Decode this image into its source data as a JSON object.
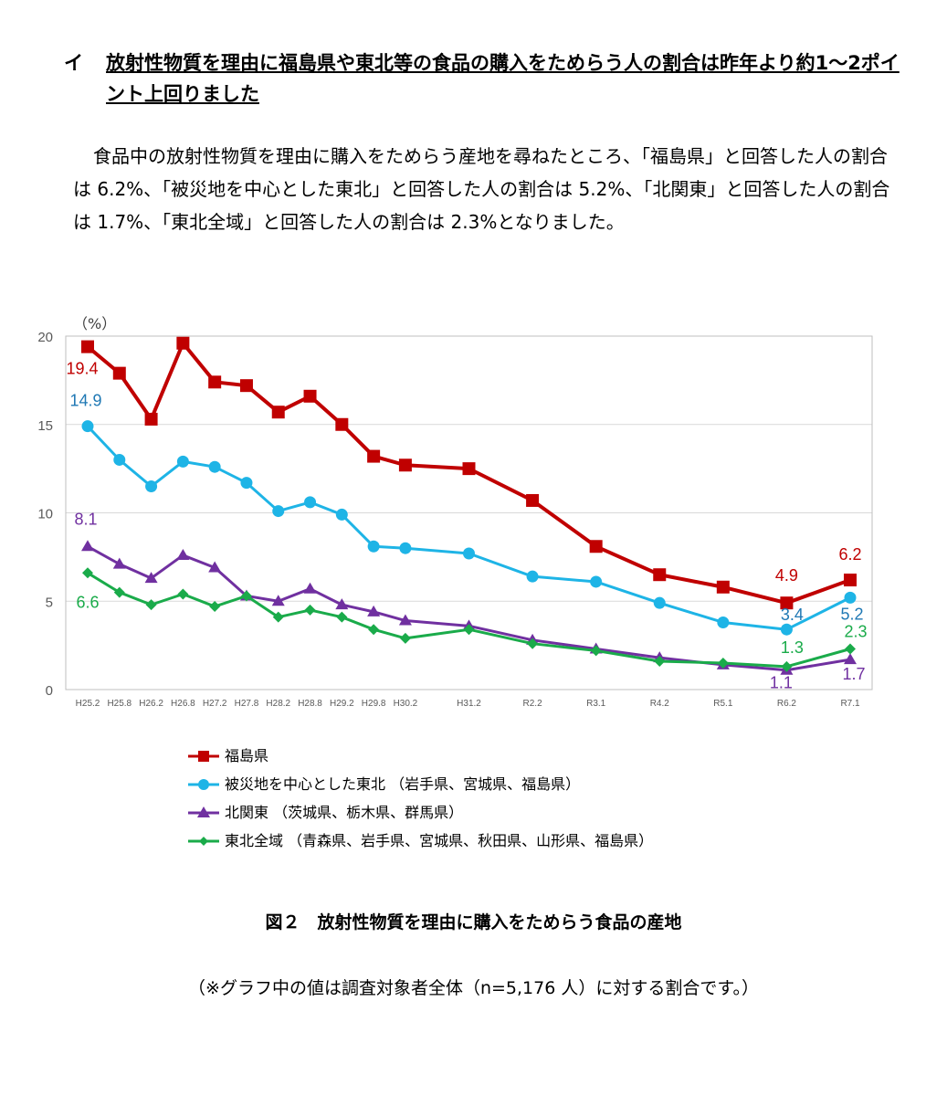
{
  "heading": {
    "marker": "イ",
    "text": "放射性物質を理由に福島県や東北等の食品の購入をためらう人の割合は昨年より約1〜2ポイント上回りました"
  },
  "paragraph": "食品中の放射性物質を理由に購入をためらう産地を尋ねたところ、「福島県」と回答した人の割合は 6.2%、「被災地を中心とした東北」と回答した人の割合は 5.2%、「北関東」と回答した人の割合は 1.7%、「東北全域」と回答した人の割合は 2.3%となりました。",
  "caption": "図２　放射性物質を理由に購入をためらう食品の産地",
  "note": "（※グラフ中の値は調査対象者全体（n=5,176 人）に対する割合です。）",
  "chart_data": {
    "type": "line",
    "unit_label": "（%）",
    "ylim": [
      0,
      20
    ],
    "yticks": [
      0,
      5,
      10,
      15,
      20
    ],
    "grid": true,
    "x": [
      0,
      1,
      2,
      3,
      4,
      5,
      6,
      7,
      8,
      9,
      10,
      12,
      14,
      16,
      18,
      20,
      22,
      24
    ],
    "x_tick_labels": [
      "H25.2",
      "H25.8",
      "H26.2",
      "H26.8",
      "H27.2",
      "H27.8",
      "H28.2",
      "H28.8",
      "H29.2",
      "H29.8",
      "H30.2",
      "H31.2",
      "R2.2",
      "R3.1",
      "R4.2",
      "R5.1",
      "R6.2",
      "R7.1"
    ],
    "legend_position": "bottom",
    "series": [
      {
        "name": "福島県",
        "color": "#c00000",
        "marker": "square",
        "values": [
          19.4,
          17.9,
          15.3,
          19.6,
          17.4,
          17.2,
          15.7,
          16.6,
          15.0,
          13.2,
          12.7,
          12.5,
          10.7,
          8.1,
          6.5,
          5.8,
          4.9,
          6.2
        ],
        "labels": [
          {
            "index": 0,
            "text": "19.4",
            "dx": -6,
            "dy": 30
          },
          {
            "index": 16,
            "text": "4.9",
            "dx": 0,
            "dy": -24
          },
          {
            "index": 17,
            "text": "6.2",
            "dx": 0,
            "dy": -22
          }
        ]
      },
      {
        "name": "被災地を中心とした東北 （岩手県、宮城県、福島県）",
        "color": "#1eb4e6",
        "label_color": "#1f78b4",
        "marker": "circle",
        "values": [
          14.9,
          13.0,
          11.5,
          12.9,
          12.6,
          11.7,
          10.1,
          10.6,
          9.9,
          8.1,
          8.0,
          7.7,
          6.4,
          6.1,
          4.9,
          3.8,
          3.4,
          5.2
        ],
        "labels": [
          {
            "index": 0,
            "text": "14.9",
            "dx": -2,
            "dy": -22
          },
          {
            "index": 16,
            "text": "3.4",
            "dx": 6,
            "dy": -10
          },
          {
            "index": 17,
            "text": "5.2",
            "dx": 2,
            "dy": 24
          }
        ]
      },
      {
        "name": "北関東 （茨城県、栃木県、群馬県）",
        "color": "#7030a0",
        "marker": "triangle",
        "values": [
          8.1,
          7.1,
          6.3,
          7.6,
          6.9,
          5.3,
          5.0,
          5.7,
          4.8,
          4.4,
          3.9,
          3.6,
          2.8,
          2.3,
          1.8,
          1.4,
          1.1,
          1.7
        ],
        "labels": [
          {
            "index": 0,
            "text": "8.1",
            "dx": -2,
            "dy": -24
          },
          {
            "index": 16,
            "text": "1.1",
            "dx": -6,
            "dy": 20
          },
          {
            "index": 17,
            "text": "1.7",
            "dx": 4,
            "dy": 22
          }
        ]
      },
      {
        "name": "東北全域 （青森県、岩手県、宮城県、秋田県、山形県、福島県）",
        "color": "#1aab4a",
        "marker": "diamond",
        "values": [
          6.6,
          5.5,
          4.8,
          5.4,
          4.7,
          5.3,
          4.1,
          4.5,
          4.1,
          3.4,
          2.9,
          3.4,
          2.6,
          2.2,
          1.6,
          1.5,
          1.3,
          2.3
        ],
        "labels": [
          {
            "index": 0,
            "text": "6.6",
            "dx": 0,
            "dy": 38
          },
          {
            "index": 16,
            "text": "1.3",
            "dx": 6,
            "dy": -15
          },
          {
            "index": 17,
            "text": "2.3",
            "dx": 6,
            "dy": -13
          }
        ]
      }
    ]
  }
}
